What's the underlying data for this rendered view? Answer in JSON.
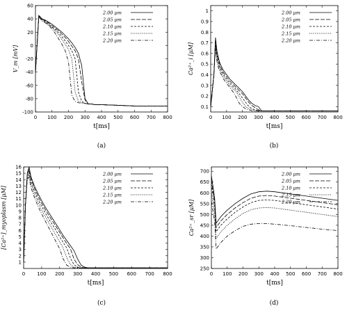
{
  "series_names": [
    "2.00 μm",
    "2.05 μm",
    "2.10 μm",
    "2.15 μm",
    "2.20 μm"
  ],
  "dash_styles": [
    "",
    "6,2",
    "3,2",
    "1.2,1.5",
    "5,2,1,2"
  ],
  "chart_data": [
    {
      "type": "line",
      "caption": "(a)",
      "ylabel": "V_m [mV]",
      "xlabel": "t[ms]",
      "xlim": [
        0,
        800
      ],
      "ylim": [
        -100,
        60
      ],
      "xticks": [
        0,
        100,
        200,
        300,
        400,
        500,
        600,
        700,
        800
      ],
      "yticks": [
        60,
        40,
        20,
        0,
        -20,
        -40,
        -60,
        -80,
        -100
      ],
      "x": [
        0,
        20,
        40,
        60,
        80,
        100,
        120,
        140,
        160,
        180,
        200,
        220,
        240,
        260,
        280,
        300,
        320,
        340,
        360,
        380,
        400,
        500,
        600,
        700,
        800
      ],
      "series": [
        {
          "name": "2.00 μm",
          "values": [
            -40,
            45,
            40,
            38,
            35,
            32,
            28,
            24,
            20,
            15,
            10,
            4,
            -3,
            -12,
            -30,
            -80,
            -88,
            -88,
            -89,
            -89,
            -89,
            -90,
            -91,
            -91,
            -91
          ]
        },
        {
          "name": "2.05 μm",
          "values": [
            -40,
            45,
            40,
            37,
            34,
            30,
            26,
            22,
            17,
            12,
            6,
            -1,
            -8,
            -20,
            -55,
            -82,
            -88,
            -88,
            -89,
            -89,
            -89,
            -90,
            -91,
            -91,
            -91
          ]
        },
        {
          "name": "2.10 μm",
          "values": [
            -40,
            44,
            39,
            36,
            32,
            28,
            24,
            19,
            13,
            7,
            0,
            -8,
            -20,
            -70,
            -84,
            -87,
            -88,
            -88,
            -89,
            -89,
            -89,
            -90,
            -91,
            -91,
            -91
          ]
        },
        {
          "name": "2.15 μm",
          "values": [
            -40,
            44,
            38,
            35,
            31,
            27,
            22,
            16,
            9,
            2,
            -6,
            -20,
            -70,
            -84,
            -86,
            -87,
            -88,
            -88,
            -89,
            -89,
            -89,
            -90,
            -91,
            -91,
            -91
          ]
        },
        {
          "name": "2.20 μm",
          "values": [
            -40,
            43,
            37,
            34,
            30,
            25,
            18,
            10,
            2,
            -8,
            -25,
            -75,
            -84,
            -86,
            -87,
            -87,
            -88,
            -88,
            -89,
            -89,
            -89,
            -90,
            -91,
            -91,
            -91
          ]
        }
      ]
    },
    {
      "type": "line",
      "caption": "(b)",
      "ylabel": "Ca²⁺_i [μM]",
      "xlabel": "t[ms]",
      "xlim": [
        0,
        800
      ],
      "ylim": [
        0.05,
        1.05
      ],
      "xticks": [
        0,
        100,
        200,
        300,
        400,
        500,
        600,
        700,
        800
      ],
      "yticks": [
        1,
        0.9,
        0.8,
        0.7,
        0.6,
        0.5,
        0.4,
        0.3,
        0.2,
        0.1
      ],
      "x": [
        0,
        20,
        30,
        40,
        50,
        60,
        80,
        100,
        120,
        140,
        160,
        180,
        200,
        220,
        240,
        260,
        280,
        300,
        320,
        340,
        360,
        400,
        500,
        600,
        700,
        800
      ],
      "series": [
        {
          "name": "2.00 μm",
          "values": [
            0.1,
            0.4,
            0.75,
            0.62,
            0.55,
            0.5,
            0.44,
            0.4,
            0.36,
            0.33,
            0.3,
            0.27,
            0.24,
            0.2,
            0.16,
            0.13,
            0.11,
            0.1,
            0.06,
            0.06,
            0.06,
            0.06,
            0.06,
            0.06,
            0.06,
            0.06
          ]
        },
        {
          "name": "2.05 μm",
          "values": [
            0.1,
            0.4,
            0.73,
            0.6,
            0.53,
            0.48,
            0.42,
            0.38,
            0.34,
            0.31,
            0.28,
            0.25,
            0.22,
            0.18,
            0.14,
            0.11,
            0.09,
            0.07,
            0.06,
            0.06,
            0.06,
            0.06,
            0.06,
            0.06,
            0.06,
            0.06
          ]
        },
        {
          "name": "2.10 μm",
          "values": [
            0.1,
            0.4,
            0.7,
            0.58,
            0.5,
            0.46,
            0.4,
            0.36,
            0.32,
            0.29,
            0.26,
            0.22,
            0.18,
            0.14,
            0.1,
            0.08,
            0.07,
            0.06,
            0.06,
            0.06,
            0.06,
            0.06,
            0.06,
            0.06,
            0.06,
            0.06
          ]
        },
        {
          "name": "2.15 μm",
          "values": [
            0.1,
            0.4,
            0.68,
            0.55,
            0.48,
            0.44,
            0.38,
            0.34,
            0.3,
            0.27,
            0.24,
            0.19,
            0.14,
            0.1,
            0.08,
            0.07,
            0.06,
            0.06,
            0.06,
            0.06,
            0.06,
            0.06,
            0.06,
            0.06,
            0.06,
            0.06
          ]
        },
        {
          "name": "2.20 μm",
          "values": [
            0.1,
            0.4,
            0.65,
            0.52,
            0.46,
            0.42,
            0.36,
            0.32,
            0.28,
            0.24,
            0.19,
            0.13,
            0.1,
            0.08,
            0.07,
            0.06,
            0.06,
            0.06,
            0.06,
            0.06,
            0.06,
            0.06,
            0.06,
            0.06,
            0.06,
            0.06
          ]
        }
      ]
    },
    {
      "type": "line",
      "caption": "(c)",
      "ylabel": "[Ca²⁺]_myoplasm [μM]",
      "xlabel": "t[ms]",
      "xlim": [
        0,
        800
      ],
      "ylim": [
        0,
        16
      ],
      "xticks": [
        0,
        100,
        200,
        300,
        400,
        500,
        600,
        700,
        800
      ],
      "yticks": [
        16,
        15,
        14,
        13,
        12,
        11,
        10,
        9,
        8,
        7,
        6,
        5,
        4,
        3,
        2,
        1
      ],
      "x": [
        0,
        10,
        20,
        30,
        40,
        60,
        80,
        100,
        120,
        140,
        160,
        180,
        200,
        220,
        240,
        260,
        280,
        300,
        320,
        340,
        360,
        380,
        400,
        500,
        600,
        700,
        800
      ],
      "series": [
        {
          "name": "2.00 μm",
          "values": [
            1,
            10,
            15,
            16,
            14.5,
            13,
            11.8,
            10.7,
            9.7,
            8.8,
            7.9,
            7,
            6.1,
            5.2,
            4.4,
            3.6,
            2.8,
            1.5,
            0.5,
            0.2,
            0.1,
            0.1,
            0.1,
            0.1,
            0.1,
            0.1,
            0.1
          ]
        },
        {
          "name": "2.05 μm",
          "values": [
            1,
            10,
            14.8,
            15.6,
            14.2,
            12.7,
            11.4,
            10.3,
            9.3,
            8.4,
            7.5,
            6.6,
            5.7,
            4.8,
            3.9,
            3.1,
            1.5,
            0.6,
            0.2,
            0.1,
            0.1,
            0.1,
            0.1,
            0.1,
            0.1,
            0.1,
            0.1
          ]
        },
        {
          "name": "2.10 μm",
          "values": [
            1,
            10,
            14.5,
            15.2,
            13.8,
            12.2,
            10.9,
            9.8,
            8.8,
            7.8,
            6.9,
            6,
            5,
            4.1,
            3.2,
            1.6,
            0.6,
            0.2,
            0.1,
            0.1,
            0.1,
            0.1,
            0.1,
            0.1,
            0.1,
            0.1,
            0.1
          ]
        },
        {
          "name": "2.15 μm",
          "values": [
            1,
            10,
            14.2,
            14.8,
            13.3,
            11.7,
            10.4,
            9.2,
            8.2,
            7.2,
            6.2,
            5.2,
            4.2,
            3.2,
            1.7,
            0.6,
            0.2,
            0.1,
            0.1,
            0.1,
            0.1,
            0.1,
            0.1,
            0.1,
            0.1,
            0.1,
            0.1
          ]
        },
        {
          "name": "2.20 μm",
          "values": [
            1,
            10,
            14,
            14.4,
            12.8,
            11.2,
            9.8,
            8.6,
            7.5,
            6.4,
            5.3,
            4.2,
            3.1,
            1.5,
            0.5,
            0.2,
            0.1,
            0.1,
            0.1,
            0.1,
            0.1,
            0.1,
            0.1,
            0.1,
            0.1,
            0.1,
            0.1
          ]
        }
      ]
    },
    {
      "type": "line",
      "caption": "(d)",
      "ylabel": "Ca²⁺_sr [μM]",
      "xlabel": "t[ms]",
      "xlim": [
        0,
        800
      ],
      "ylim": [
        250,
        720
      ],
      "xticks": [
        0,
        100,
        200,
        300,
        400,
        500,
        600,
        700,
        800
      ],
      "yticks": [
        700,
        650,
        600,
        550,
        500,
        450,
        400,
        350,
        300,
        250
      ],
      "x": [
        0,
        20,
        30,
        40,
        60,
        100,
        150,
        200,
        250,
        300,
        350,
        400,
        500,
        600,
        700,
        800
      ],
      "series": [
        {
          "name": "2.00 μm",
          "values": [
            680,
            580,
            460,
            470,
            490,
            520,
            550,
            575,
            595,
            605,
            608,
            605,
            595,
            585,
            575,
            565
          ]
        },
        {
          "name": "2.05 μm",
          "values": [
            660,
            560,
            440,
            450,
            470,
            500,
            530,
            555,
            575,
            585,
            588,
            585,
            575,
            565,
            555,
            545
          ]
        },
        {
          "name": "2.10 μm",
          "values": [
            640,
            540,
            420,
            430,
            450,
            480,
            510,
            535,
            555,
            565,
            567,
            565,
            555,
            545,
            535,
            525
          ]
        },
        {
          "name": "2.15 μm",
          "values": [
            600,
            510,
            390,
            400,
            420,
            450,
            480,
            505,
            522,
            530,
            532,
            530,
            520,
            510,
            500,
            490
          ]
        },
        {
          "name": "2.20 μm",
          "values": [
            560,
            470,
            340,
            350,
            370,
            400,
            425,
            445,
            455,
            458,
            458,
            455,
            448,
            440,
            432,
            425
          ]
        }
      ]
    }
  ]
}
